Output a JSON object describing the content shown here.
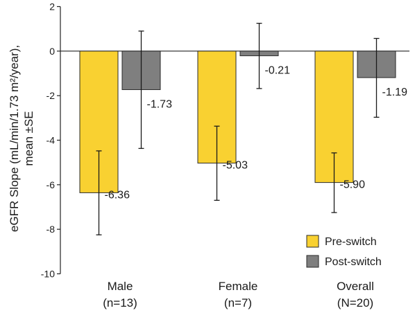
{
  "chart_data": {
    "type": "bar",
    "categories": [
      {
        "name": "Male",
        "n": "(n=13)"
      },
      {
        "name": "Female",
        "n": "(n=7)"
      },
      {
        "name": "Overall",
        "n": "(N=20)"
      }
    ],
    "series": [
      {
        "name": "Pre-switch",
        "color": "#F9D131",
        "values": [
          -6.36,
          -5.03,
          -5.9
        ],
        "labels": [
          "-6.36",
          "-5.03",
          "-5.90"
        ],
        "error_low": [
          -8.25,
          -6.7,
          -7.25
        ],
        "error_high": [
          -4.48,
          -3.37,
          -4.57
        ]
      },
      {
        "name": "Post-switch",
        "color": "#7F7F7F",
        "values": [
          -1.73,
          -0.21,
          -1.19
        ],
        "labels": [
          "-1.73",
          "-0.21",
          "-1.19"
        ],
        "error_low": [
          -4.37,
          -1.68,
          -2.97
        ],
        "error_high": [
          0.9,
          1.25,
          0.57
        ]
      }
    ],
    "ylabel_line1": "eGFR Slope (mL/min/1.73 m²/year),",
    "ylabel_line2": "mean ±SE",
    "ylim": [
      -10,
      2
    ],
    "yticks": [
      2,
      0,
      -2,
      -4,
      -6,
      -8,
      -10
    ],
    "ytick_labels": [
      "2",
      "0",
      "-2",
      "-4",
      "-6",
      "-8",
      "-10"
    ],
    "legend_position": "bottom-right",
    "grid": false
  }
}
